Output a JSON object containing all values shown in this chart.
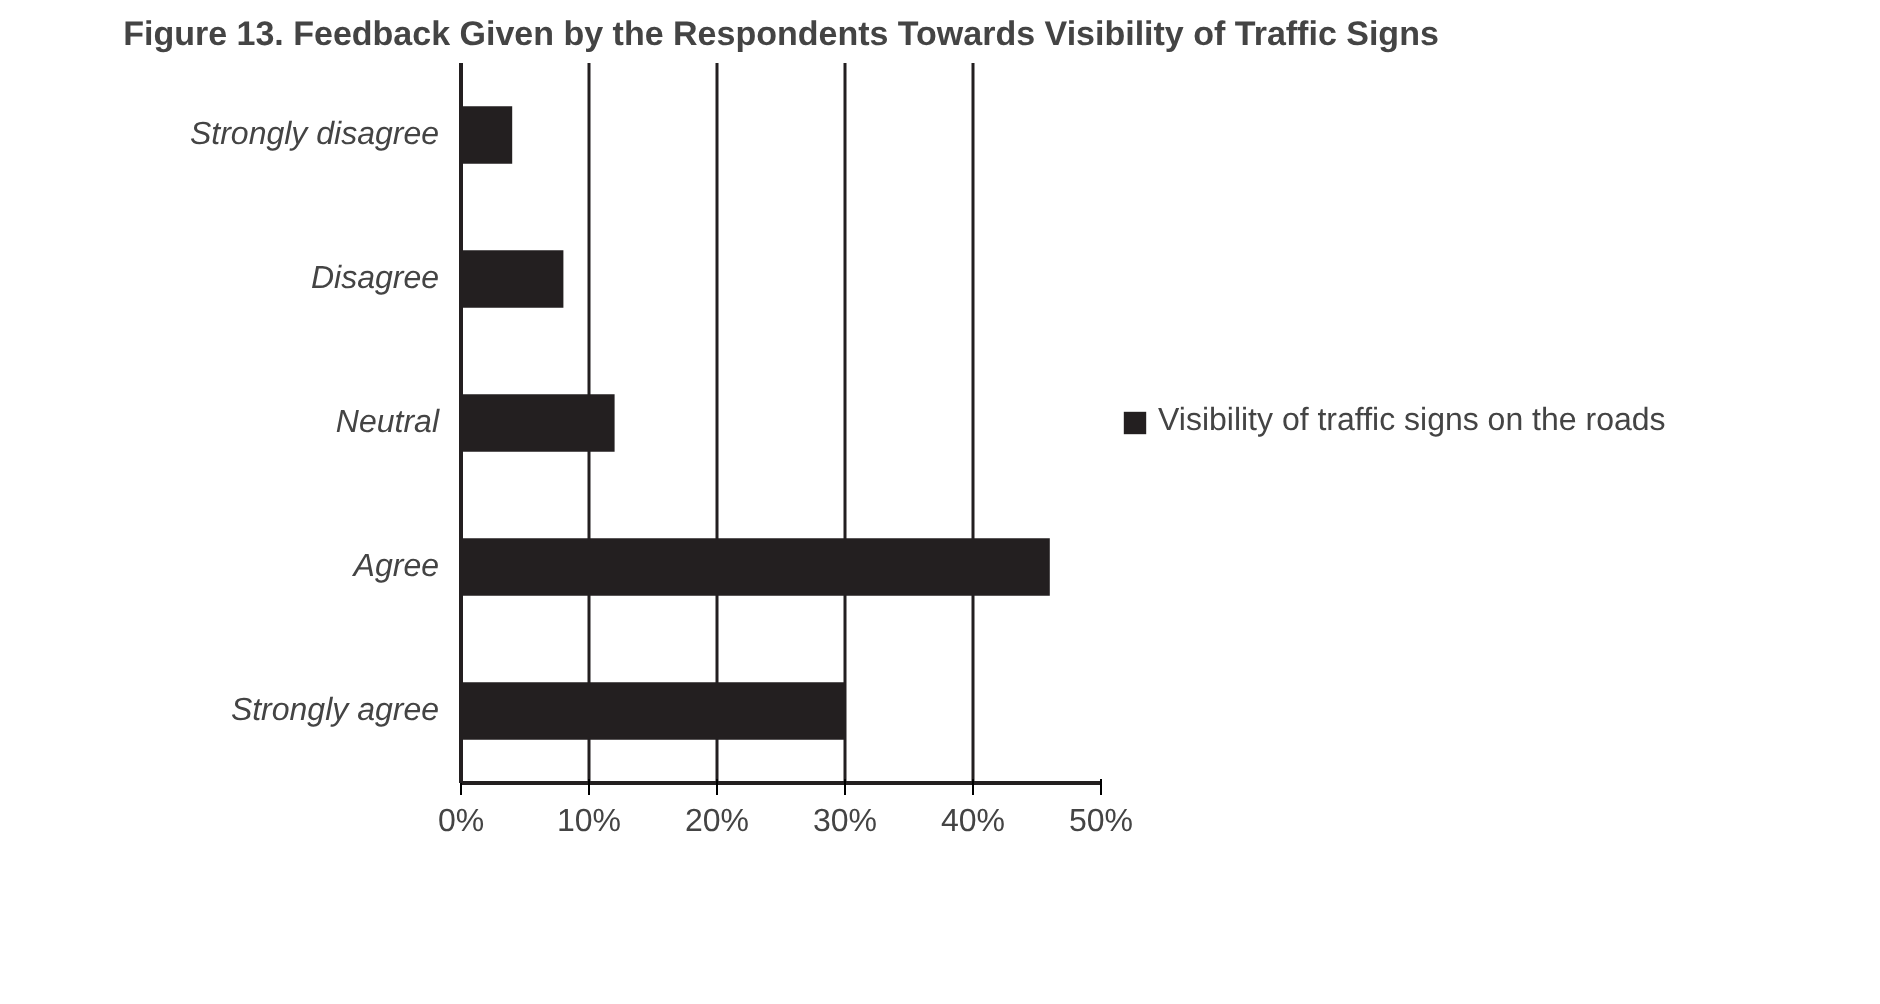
{
  "chart_data": {
    "type": "bar",
    "orientation": "horizontal",
    "title": "Figure 13. Feedback Given by the Respondents Towards Visibility of Traffic Signs",
    "categories": [
      "Strongly disagree",
      "Disagree",
      "Neutral",
      "Agree",
      "Strongly agree"
    ],
    "series": [
      {
        "name": "Visibility of traffic signs on the roads",
        "color": "#231f20",
        "values": [
          4,
          8,
          12,
          46,
          30
        ]
      }
    ],
    "xlim": [
      0,
      50
    ],
    "xticks": [
      {
        "value": 0,
        "label": "0%"
      },
      {
        "value": 10,
        "label": "10%"
      },
      {
        "value": 20,
        "label": "20%"
      },
      {
        "value": 30,
        "label": "30%"
      },
      {
        "value": 40,
        "label": "40%"
      },
      {
        "value": 50,
        "label": "50%"
      }
    ],
    "grid": "x",
    "legend": "right"
  }
}
